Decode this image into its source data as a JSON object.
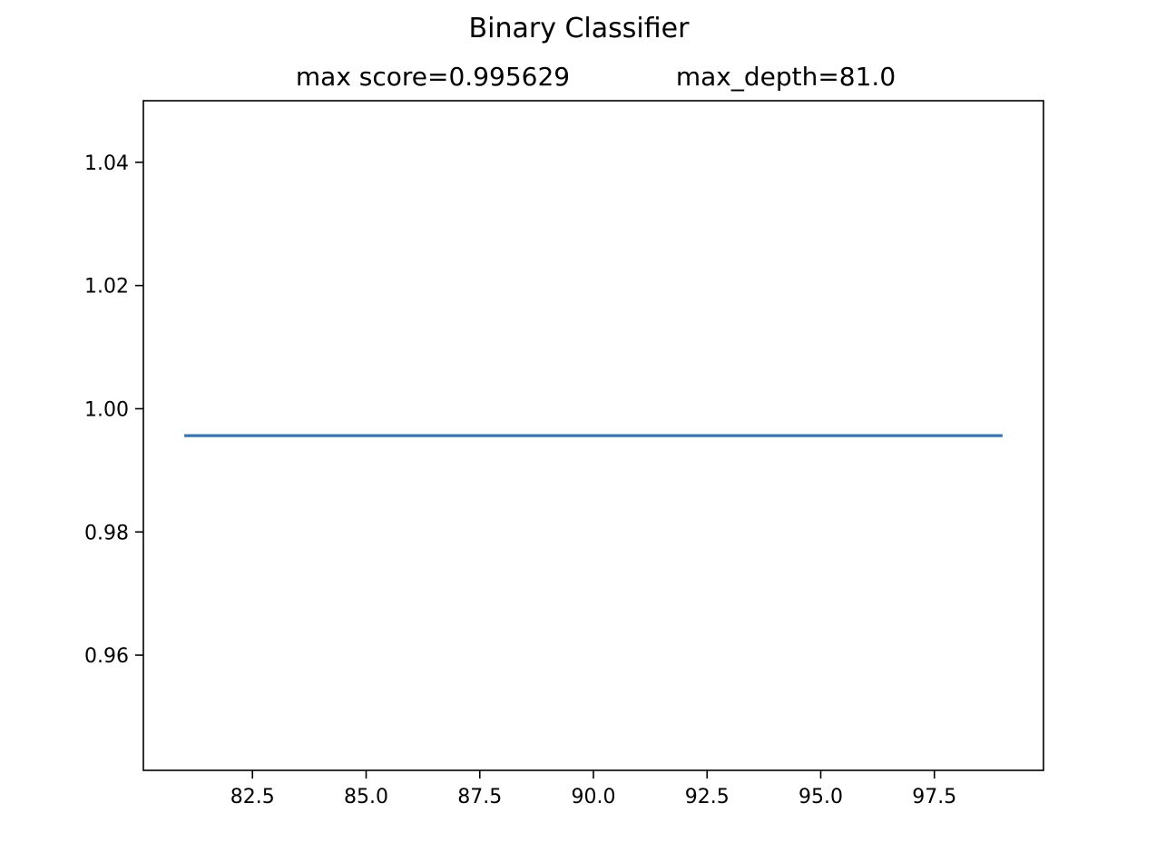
{
  "figure": {
    "suptitle": "Binary Classifier"
  },
  "chart_data": {
    "type": "line",
    "title_left": "max score=0.995629",
    "title_right": "max_depth=81.0",
    "xlabel": "",
    "ylabel": "",
    "xlim": [
      80.1,
      99.9
    ],
    "ylim": [
      0.9413,
      1.05
    ],
    "x_ticks": [
      {
        "value": 82.5,
        "label": "82.5"
      },
      {
        "value": 85.0,
        "label": "85.0"
      },
      {
        "value": 87.5,
        "label": "87.5"
      },
      {
        "value": 90.0,
        "label": "90.0"
      },
      {
        "value": 92.5,
        "label": "92.5"
      },
      {
        "value": 95.0,
        "label": "95.0"
      },
      {
        "value": 97.5,
        "label": "97.5"
      }
    ],
    "y_ticks": [
      {
        "value": 0.96,
        "label": "0.96"
      },
      {
        "value": 0.98,
        "label": "0.98"
      },
      {
        "value": 1.0,
        "label": "1.00"
      },
      {
        "value": 1.02,
        "label": "1.02"
      },
      {
        "value": 1.04,
        "label": "1.04"
      }
    ],
    "grid": false,
    "legend": "none",
    "series": [
      {
        "color": "#3a75ad",
        "x": [
          81,
          99
        ],
        "y": [
          0.995629,
          0.995629
        ]
      }
    ]
  }
}
